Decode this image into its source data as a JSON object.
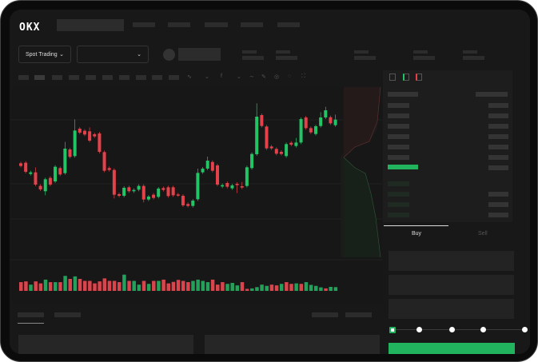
{
  "header": {
    "logo": "OKX"
  },
  "controls": {
    "market_type": "Spot Trading",
    "pair_select": ""
  },
  "order_form": {
    "tabs": [
      "Buy",
      "Sell"
    ],
    "active_tab": "Buy",
    "slider_steps": 5,
    "slider_value_percent": 0
  },
  "colors": {
    "up": "#22c465",
    "down": "#e5414a",
    "accent": "#22b35e",
    "background": "#181818"
  },
  "icons": {
    "chevron": "chevron-down-icon",
    "orderbook_views": [
      "orderbook-both-icon",
      "orderbook-bids-icon",
      "orderbook-asks-icon"
    ]
  },
  "chart_data": {
    "type": "candlestick",
    "candles": [
      {
        "o": 200,
        "c": 190
      },
      {
        "o": 202,
        "c": 168
      },
      {
        "o": 160,
        "c": 166
      },
      {
        "o": 166,
        "c": 120,
        "h": 185
      },
      {
        "o": 115,
        "c": 102
      },
      {
        "o": 95,
        "c": 140,
        "l": 80
      },
      {
        "o": 145,
        "c": 120
      },
      {
        "o": 132,
        "c": 187
      },
      {
        "o": 182,
        "c": 158
      },
      {
        "o": 163,
        "c": 255,
        "h": 280
      },
      {
        "o": 252,
        "c": 224
      },
      {
        "o": 227,
        "c": 323,
        "h": 365
      },
      {
        "o": 330,
        "c": 315
      },
      {
        "o": 322,
        "c": 308
      },
      {
        "o": 320,
        "c": 285,
        "h": 335
      },
      {
        "o": 309,
        "c": 301
      },
      {
        "o": 312,
        "c": 243
      },
      {
        "o": 242,
        "c": 172
      },
      {
        "o": 182,
        "c": 175
      },
      {
        "o": 175,
        "c": 82,
        "l": 68
      },
      {
        "o": 84,
        "c": 78
      },
      {
        "o": 78,
        "c": 108
      },
      {
        "o": 110,
        "c": 95
      },
      {
        "o": 95,
        "c": 100
      },
      {
        "o": 101,
        "c": 115
      },
      {
        "o": 115,
        "c": 64,
        "l": 53
      },
      {
        "o": 64,
        "c": 75
      },
      {
        "o": 82,
        "c": 70
      },
      {
        "o": 74,
        "c": 105
      },
      {
        "o": 107,
        "c": 100
      },
      {
        "o": 110,
        "c": 77
      },
      {
        "o": 110,
        "c": 80
      },
      {
        "o": 83,
        "c": 80
      },
      {
        "o": 78,
        "c": 42
      },
      {
        "o": 47,
        "c": 40
      },
      {
        "o": 40,
        "c": 60
      },
      {
        "o": 65,
        "c": 164,
        "h": 180
      },
      {
        "o": 166,
        "c": 180
      },
      {
        "o": 180,
        "c": 210,
        "h": 225
      },
      {
        "o": 205,
        "c": 172
      },
      {
        "o": 192,
        "c": 120
      },
      {
        "o": 113,
        "c": 118
      },
      {
        "o": 126,
        "c": 112
      },
      {
        "o": 106,
        "c": 117
      },
      {
        "o": 123,
        "c": 118,
        "l": 88
      },
      {
        "o": 114,
        "c": 109,
        "h": 130
      },
      {
        "o": 115,
        "c": 185
      },
      {
        "o": 182,
        "c": 235
      },
      {
        "o": 234,
        "c": 375,
        "h": 425
      },
      {
        "o": 381,
        "c": 340
      },
      {
        "o": 338,
        "c": 256
      },
      {
        "o": 263,
        "c": 256
      },
      {
        "o": 254,
        "c": 236
      },
      {
        "o": 243,
        "c": 235
      },
      {
        "o": 227,
        "c": 272
      },
      {
        "o": 277,
        "c": 270
      },
      {
        "o": 265,
        "c": 278,
        "h": 295
      },
      {
        "o": 278,
        "c": 366
      },
      {
        "o": 372,
        "c": 332
      },
      {
        "o": 332,
        "c": 316
      },
      {
        "o": 310,
        "c": 339
      },
      {
        "o": 340,
        "c": 372,
        "h": 392
      },
      {
        "o": 372,
        "c": 399,
        "h": 412
      },
      {
        "o": 373,
        "c": 350
      },
      {
        "o": 343,
        "c": 364,
        "h": 383
      }
    ],
    "volume": [
      {
        "v": 35,
        "d": "down"
      },
      {
        "v": 38,
        "d": "down"
      },
      {
        "v": 25,
        "d": "up"
      },
      {
        "v": 38,
        "d": "down"
      },
      {
        "v": 30,
        "d": "down"
      },
      {
        "v": 45,
        "d": "up"
      },
      {
        "v": 35,
        "d": "down"
      },
      {
        "v": 35,
        "d": "up"
      },
      {
        "v": 35,
        "d": "down"
      },
      {
        "v": 60,
        "d": "up"
      },
      {
        "v": 48,
        "d": "down"
      },
      {
        "v": 58,
        "d": "up"
      },
      {
        "v": 48,
        "d": "down"
      },
      {
        "v": 40,
        "d": "down"
      },
      {
        "v": 40,
        "d": "down"
      },
      {
        "v": 30,
        "d": "down"
      },
      {
        "v": 38,
        "d": "down"
      },
      {
        "v": 50,
        "d": "down"
      },
      {
        "v": 40,
        "d": "down"
      },
      {
        "v": 40,
        "d": "down"
      },
      {
        "v": 35,
        "d": "down"
      },
      {
        "v": 65,
        "d": "up"
      },
      {
        "v": 40,
        "d": "down"
      },
      {
        "v": 40,
        "d": "up"
      },
      {
        "v": 25,
        "d": "up"
      },
      {
        "v": 40,
        "d": "down"
      },
      {
        "v": 28,
        "d": "up"
      },
      {
        "v": 40,
        "d": "down"
      },
      {
        "v": 40,
        "d": "up"
      },
      {
        "v": 45,
        "d": "down"
      },
      {
        "v": 30,
        "d": "down"
      },
      {
        "v": 36,
        "d": "down"
      },
      {
        "v": 44,
        "d": "down"
      },
      {
        "v": 40,
        "d": "down"
      },
      {
        "v": 35,
        "d": "down"
      },
      {
        "v": 40,
        "d": "up"
      },
      {
        "v": 45,
        "d": "up"
      },
      {
        "v": 40,
        "d": "up"
      },
      {
        "v": 35,
        "d": "up"
      },
      {
        "v": 45,
        "d": "down"
      },
      {
        "v": 25,
        "d": "down"
      },
      {
        "v": 35,
        "d": "down"
      },
      {
        "v": 28,
        "d": "up"
      },
      {
        "v": 32,
        "d": "up"
      },
      {
        "v": 22,
        "d": "up"
      },
      {
        "v": 35,
        "d": "down"
      },
      {
        "v": 8,
        "d": "down"
      },
      {
        "v": 10,
        "d": "up"
      },
      {
        "v": 15,
        "d": "up"
      },
      {
        "v": 25,
        "d": "up"
      },
      {
        "v": 20,
        "d": "up"
      },
      {
        "v": 25,
        "d": "down"
      },
      {
        "v": 22,
        "d": "down"
      },
      {
        "v": 28,
        "d": "up"
      },
      {
        "v": 35,
        "d": "down"
      },
      {
        "v": 28,
        "d": "down"
      },
      {
        "v": 30,
        "d": "up"
      },
      {
        "v": 28,
        "d": "down"
      },
      {
        "v": 35,
        "d": "up"
      },
      {
        "v": 24,
        "d": "up"
      },
      {
        "v": 20,
        "d": "up"
      },
      {
        "v": 14,
        "d": "up"
      },
      {
        "v": 10,
        "d": "down"
      },
      {
        "v": 16,
        "d": "up"
      },
      {
        "v": 15,
        "d": "up"
      }
    ]
  }
}
